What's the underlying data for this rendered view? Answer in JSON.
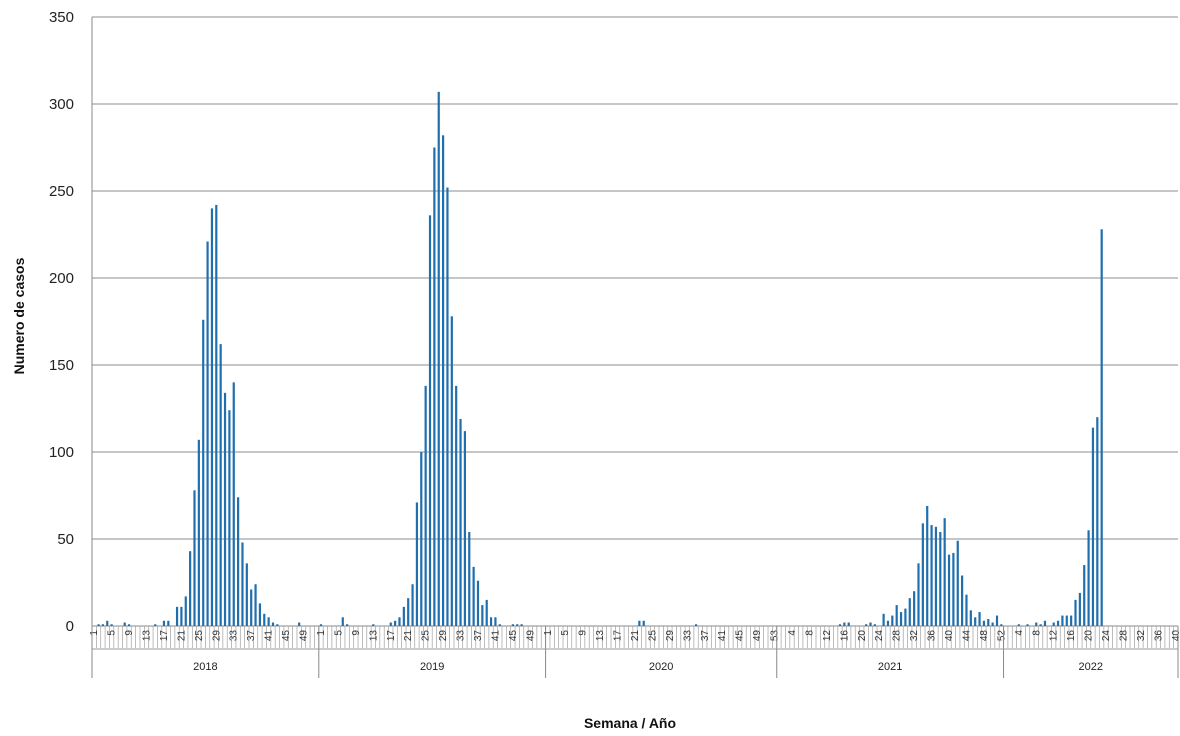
{
  "chart_data": {
    "type": "bar",
    "title": "",
    "xlabel": "Semana  / Año",
    "ylabel": "Numero de casos",
    "ylim": [
      0,
      350
    ],
    "yticks": [
      0,
      50,
      100,
      150,
      200,
      250,
      300,
      350
    ],
    "grid": true,
    "legend": "none",
    "bar_color": "#1f6fae",
    "groups": [
      {
        "year": "2018",
        "weeks": 52,
        "tick_labels": [
          "1",
          "5",
          "9",
          "13",
          "17",
          "21",
          "25",
          "29",
          "33",
          "37",
          "41",
          "45",
          "49"
        ],
        "values": [
          0,
          1,
          1,
          3,
          1,
          0,
          0,
          2,
          1,
          0,
          0,
          0,
          0,
          0,
          1,
          0,
          3,
          3,
          0,
          11,
          11,
          17,
          43,
          78,
          107,
          176,
          221,
          240,
          242,
          162,
          134,
          124,
          140,
          74,
          48,
          36,
          21,
          24,
          13,
          7,
          5,
          2,
          1,
          0,
          0,
          0,
          0,
          2,
          0,
          0,
          0,
          0
        ]
      },
      {
        "year": "2019",
        "weeks": 52,
        "tick_labels": [
          "1",
          "5",
          "9",
          "13",
          "17",
          "21",
          "25",
          "29",
          "33",
          "37",
          "41",
          "45",
          "49"
        ],
        "values": [
          1,
          0,
          0,
          0,
          0,
          5,
          1,
          0,
          0,
          0,
          0,
          0,
          1,
          0,
          0,
          0,
          2,
          3,
          5,
          11,
          16,
          24,
          71,
          100,
          138,
          236,
          275,
          307,
          282,
          252,
          178,
          138,
          119,
          112,
          54,
          34,
          26,
          12,
          15,
          5,
          5,
          1,
          0,
          0,
          1,
          1,
          1,
          0,
          0,
          0,
          0,
          0
        ]
      },
      {
        "year": "2020",
        "weeks": 53,
        "tick_labels": [
          "1",
          "5",
          "9",
          "13",
          "17",
          "21",
          "25",
          "29",
          "33",
          "37",
          "41",
          "45",
          "49",
          "53"
        ],
        "values": [
          0,
          0,
          0,
          0,
          0,
          0,
          0,
          0,
          0,
          0,
          0,
          0,
          0,
          0,
          0,
          0,
          0,
          0,
          0,
          0,
          0,
          3,
          3,
          0,
          0,
          0,
          0,
          0,
          0,
          0,
          0,
          0,
          0,
          0,
          1,
          0,
          0,
          0,
          0,
          0,
          0,
          0,
          0,
          0,
          0,
          0,
          0,
          0,
          0,
          0,
          0,
          0,
          0
        ]
      },
      {
        "year": "2021",
        "weeks": 52,
        "tick_labels": [
          "4",
          "8",
          "12",
          "16",
          "20",
          "24",
          "28",
          "32",
          "36",
          "40",
          "44",
          "48",
          "52"
        ],
        "values": [
          0,
          0,
          0,
          0,
          0,
          0,
          0,
          0,
          0,
          0,
          0,
          0,
          0,
          0,
          1,
          2,
          2,
          0,
          0,
          0,
          1,
          2,
          1,
          0,
          7,
          3,
          6,
          12,
          8,
          10,
          16,
          20,
          36,
          59,
          69,
          58,
          57,
          54,
          62,
          41,
          42,
          49,
          29,
          18,
          9,
          5,
          8,
          3,
          4,
          2,
          6,
          1
        ]
      },
      {
        "year": "2022",
        "weeks": 40,
        "tick_labels": [
          "4",
          "8",
          "12",
          "16",
          "20",
          "24",
          "28",
          "32",
          "36",
          "40"
        ],
        "values": [
          0,
          0,
          0,
          1,
          0,
          1,
          0,
          2,
          1,
          3,
          0,
          2,
          3,
          6,
          6,
          6,
          15,
          19,
          35,
          55,
          114,
          120,
          228,
          0,
          0,
          0,
          0,
          0,
          0,
          0,
          0,
          0,
          0,
          0,
          0,
          0,
          0,
          0,
          0,
          0
        ]
      }
    ]
  }
}
